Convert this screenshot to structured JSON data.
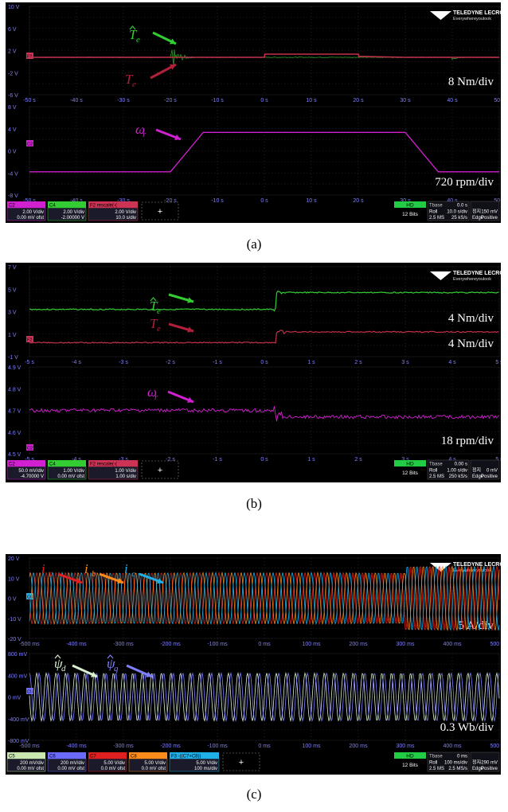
{
  "brand": {
    "name": "TELEDYNE LECROY",
    "tagline": "Everywhereyoulook"
  },
  "plus_label": "+",
  "captions": [
    "(a)",
    "(b)",
    "(c)"
  ],
  "scopes": [
    {
      "id": "a",
      "grids": [
        {
          "yticks": [
            "10 V",
            "6 V",
            "2 V",
            "-2 V",
            "-6 V"
          ],
          "xticks": [
            "-50 s",
            "-40 s",
            "-30 s",
            "-20 s",
            "-10 s",
            "0 s",
            "10 s",
            "20 s",
            "30 s",
            "40 s",
            "50 s"
          ],
          "scale_label": "8 Nm/div",
          "marker": "F2"
        },
        {
          "yticks": [
            "8 V",
            "4 V",
            "0 V",
            "-4 V",
            "-8 V"
          ],
          "xticks": [
            "-50 s",
            "-40 s",
            "-30 s",
            "-20 s",
            "-10 s",
            "0 s",
            "10 s",
            "20 s",
            "30 s",
            "40 s",
            "50 s"
          ],
          "scale_label": "720 rpm/div",
          "marker": "C2"
        }
      ],
      "signal_labels": [
        {
          "base": "T",
          "sub": "e",
          "hat": true,
          "color": "#33cc33"
        },
        {
          "base": "T",
          "sub": "e",
          "hat": false,
          "color": "#b0203a"
        },
        {
          "base": "ω",
          "sub": "r",
          "hat": false,
          "color": "#d020d0"
        }
      ],
      "channels": [
        {
          "name": "C2",
          "color": "#d020d0",
          "line1": "2.00 V/div",
          "line2": "0.00 mV ofst"
        },
        {
          "name": "C4",
          "color": "#33cc33",
          "line1": "2.00 V/div",
          "line2": "-2.00000 V"
        },
        {
          "name": "F2",
          "title": "rescale(-(",
          "color": "#cc3355",
          "line1": "2.00 V/div",
          "line2": "10.0 s/div"
        }
      ],
      "status": {
        "hd": "HD",
        "bits": "12 Bits",
        "tbase_label": "Tbase",
        "tbase_value": "0.0 s",
        "mode": "Roll",
        "rate": "10.0 s/div",
        "samples": "2.5 MS",
        "srate": "25 kS/s",
        "trig_label": "Edge",
        "trig_slope": "Positive",
        "trig_level": "150 mV",
        "trig_label2": "정지"
      }
    },
    {
      "id": "b",
      "grids": [
        {
          "yticks": [
            "7 V",
            "5 V",
            "3 V",
            "1 V",
            "-1 V"
          ],
          "xticks": [
            "-5 s",
            "-4 s",
            "-3 s",
            "-2 s",
            "-1 s",
            "0 s",
            "1 s",
            "2 s",
            "3 s",
            "4 s",
            "5 s"
          ],
          "scale_label": "4 Nm/div",
          "scale_label2": "4 Nm/div",
          "marker": "F2"
        },
        {
          "yticks": [
            "4.9 V",
            "4.8 V",
            "4.7 V",
            "4.6 V",
            "4.5 V"
          ],
          "xticks": [
            "-5 s",
            "-4 s",
            "-3 s",
            "-2 s",
            "-1 s",
            "0 s",
            "1 s",
            "2 s",
            "3 s",
            "4 s",
            "5 s"
          ],
          "scale_label": "18 rpm/div",
          "marker": "C2"
        }
      ],
      "signal_labels": [
        {
          "base": "T",
          "sub": "e",
          "hat": true,
          "color": "#33cc33"
        },
        {
          "base": "T",
          "sub": "e",
          "hat": false,
          "color": "#b0203a"
        },
        {
          "base": "ω",
          "sub": "r",
          "hat": false,
          "color": "#d020d0"
        }
      ],
      "channels": [
        {
          "name": "C2",
          "color": "#d020d0",
          "line1": "50.0 mV/div",
          "line2": "-4.70000 V"
        },
        {
          "name": "C4",
          "color": "#33cc33",
          "line1": "1.00 V/div",
          "line2": "0.00 mV ofst"
        },
        {
          "name": "F2",
          "title": "rescale(-(",
          "color": "#cc3355",
          "line1": "1.00 V/div",
          "line2": "1.00 s/div"
        }
      ],
      "status": {
        "hd": "HD",
        "bits": "12 Bits",
        "tbase_label": "Tbase",
        "tbase_value": "0.00 s",
        "mode": "Roll",
        "rate": "1.00 s/div",
        "samples": "2.5 MS",
        "srate": "250 kS/s",
        "trig_label": "Edge",
        "trig_slope": "Positive",
        "trig_level": "0 mV",
        "trig_label2": "정지"
      }
    },
    {
      "id": "c",
      "grids": [
        {
          "yticks": [
            "20 V",
            "10 V",
            "0 V",
            "-10 V",
            "-20 V"
          ],
          "xticks": [
            "-500 ms",
            "-400 ms",
            "-300 ms",
            "-200 ms",
            "-100 ms",
            "0 ms",
            "100 ms",
            "200 ms",
            "300 ms",
            "400 ms",
            "500 ms"
          ],
          "scale_label": "5 A/div",
          "marker": "C6"
        },
        {
          "yticks": [
            "800 mV",
            "400 mV",
            "0 mV",
            "-400 mV",
            "-800 mV"
          ],
          "xticks": [
            "-500 ms",
            "-400 ms",
            "-300 ms",
            "-200 ms",
            "-100 ms",
            "0 ms",
            "100 ms",
            "200 ms",
            "300 ms",
            "400 ms",
            "500 ms"
          ],
          "scale_label": "0.3 Wb/div",
          "marker": "C5"
        }
      ],
      "signal_labels": [
        {
          "base": "i",
          "sub": "a",
          "hat": false,
          "color": "#e02020"
        },
        {
          "base": "i",
          "sub": "b",
          "hat": false,
          "color": "#ff8c1a"
        },
        {
          "base": "i",
          "sub": "c",
          "hat": false,
          "color": "#20b0e8"
        },
        {
          "base": "ψ",
          "sub": "d",
          "hat": true,
          "color": "#d8f0d0"
        },
        {
          "base": "ψ",
          "sub": "q",
          "hat": true,
          "color": "#8080ff"
        }
      ],
      "channels": [
        {
          "name": "C5",
          "color": "#c8e8b0",
          "line1": "200 mV/div",
          "line2": "0.00 mV ofst"
        },
        {
          "name": "C6",
          "color": "#6a6aff",
          "line1": "200 mV/div",
          "line2": "0.00 mV ofst"
        },
        {
          "name": "C7",
          "color": "#e02020",
          "line1": "5.00 V/div",
          "line2": "0.0 mV ofst"
        },
        {
          "name": "C8",
          "color": "#ff8c1a",
          "line1": "5.00 V/div",
          "line2": "0.0 mV ofst"
        },
        {
          "name": "F3",
          "title": "-((C7+C8))",
          "color": "#20b0e8",
          "line1": "5.00 V/div",
          "line2": "100 ms/div"
        }
      ],
      "status": {
        "hd": "HD",
        "bits": "12 Bits",
        "tbase_label": "Tbase",
        "tbase_value": "0 ms",
        "mode": "Roll",
        "rate": "100 ms/div",
        "samples": "2.5 MS",
        "srate": "2.5 MS/s",
        "trig_label": "Edge",
        "trig_slope": "Positive",
        "trig_level": "-290 mV",
        "trig_label2": "정지"
      }
    }
  ],
  "chart_data": [
    {
      "type": "line",
      "x_unit": "s",
      "xlim": [
        -50,
        50
      ],
      "series": [
        {
          "name": "T̂e",
          "x": [
            -50,
            -20,
            -19,
            -10,
            0,
            20,
            40,
            50
          ],
          "y": [
            0,
            0,
            0,
            0,
            1,
            0,
            0,
            0
          ],
          "ylabel": "8 Nm/div"
        },
        {
          "name": "Te",
          "x": [
            -50,
            -20,
            -10,
            0,
            0.1,
            20,
            20.1,
            30,
            50
          ],
          "y": [
            0,
            0,
            0,
            0,
            1,
            1,
            0.3,
            0,
            0
          ],
          "ylabel": "8 Nm/div"
        },
        {
          "name": "ωr",
          "x": [
            -50,
            -20,
            -13,
            30,
            37,
            50
          ],
          "y": [
            -1,
            -1,
            1.5,
            1.5,
            -1,
            -1
          ],
          "ylabel": "720 rpm/div"
        }
      ]
    },
    {
      "type": "line",
      "x_unit": "s",
      "xlim": [
        -5,
        5
      ],
      "series": [
        {
          "name": "T̂e",
          "x": [
            -5,
            0.2,
            0.3,
            5
          ],
          "y": [
            3.2,
            3.2,
            4.7,
            4.7
          ]
        },
        {
          "name": "Te",
          "x": [
            -5,
            0.2,
            0.3,
            5
          ],
          "y": [
            0.25,
            0.25,
            1.2,
            1.2
          ]
        },
        {
          "name": "ωr",
          "x": [
            -5,
            0.2,
            0.3,
            5
          ],
          "y": [
            4.7,
            4.7,
            4.67,
            4.67
          ]
        }
      ]
    },
    {
      "type": "line",
      "x_unit": "ms",
      "xlim": [
        -500,
        500
      ],
      "series": [
        {
          "name": "ia",
          "period_ms": 20.4,
          "amplitude_V": 4,
          "amplitude_end_V": 5
        },
        {
          "name": "ib",
          "period_ms": 20.4,
          "amplitude_V": 4,
          "amplitude_end_V": 5
        },
        {
          "name": "ic",
          "period_ms": 20.4,
          "amplitude_V": 4,
          "amplitude_end_V": 5
        },
        {
          "name": "ψ̂d",
          "period_ms": 20.4,
          "amplitude_mV": 440
        },
        {
          "name": "ψ̂q",
          "period_ms": 20.4,
          "amplitude_mV": 440
        }
      ]
    }
  ]
}
